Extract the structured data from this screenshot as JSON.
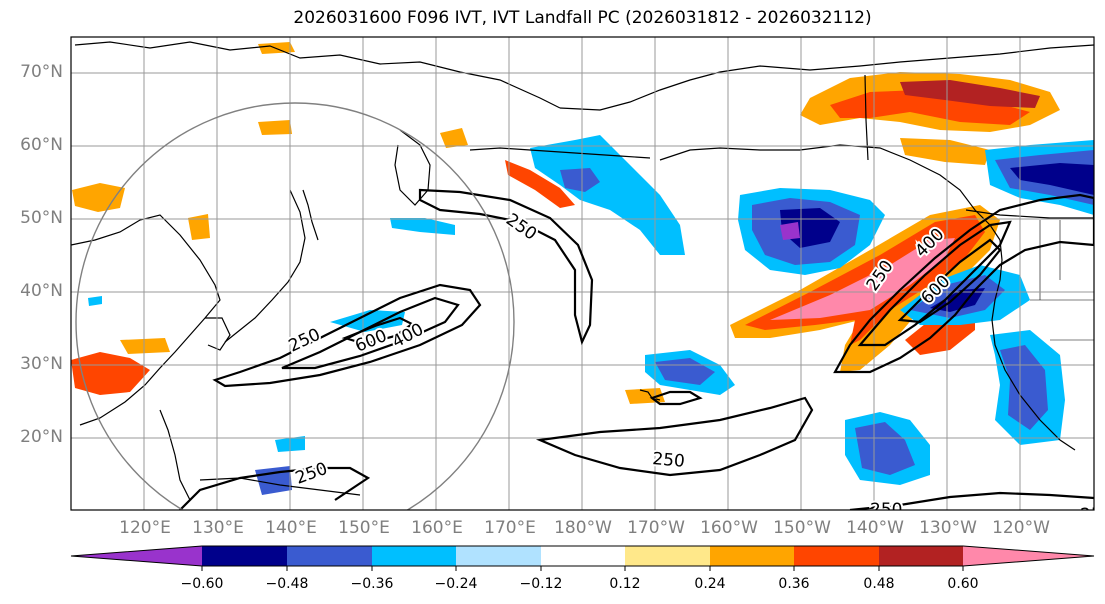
{
  "title": "2026031600 F096 IVT, IVT Landfall PC (2026031812 - 2026032112)",
  "lat_labels": [
    "70°N",
    "60°N",
    "50°N",
    "40°N",
    "30°N",
    "20°N"
  ],
  "lon_labels": [
    "120°E",
    "130°E",
    "140°E",
    "150°E",
    "160°E",
    "170°E",
    "180°W",
    "170°W",
    "160°W",
    "150°W",
    "140°W",
    "130°W",
    "120°W"
  ],
  "colorbar": {
    "labels": [
      "−0.60",
      "−0.48",
      "−0.36",
      "−0.24",
      "−0.12",
      "0.12",
      "0.24",
      "0.36",
      "0.48",
      "0.60"
    ],
    "colors": [
      "#9933cc",
      "#00008b",
      "#3a5bd0",
      "#00bfff",
      "#b0e2ff",
      "#ffffff",
      "#ffe88a",
      "#ffa500",
      "#ff4500",
      "#b22222",
      "#ff88aa"
    ]
  },
  "contour_labels": [
    "250",
    "250",
    "600",
    "400",
    "250",
    "250",
    "250",
    "250",
    "400",
    "600",
    "250"
  ],
  "colors": {
    "land_outline": "#000000",
    "grid": "#999999",
    "circle": "#808080",
    "tick_text": "#7f7f7f"
  }
}
